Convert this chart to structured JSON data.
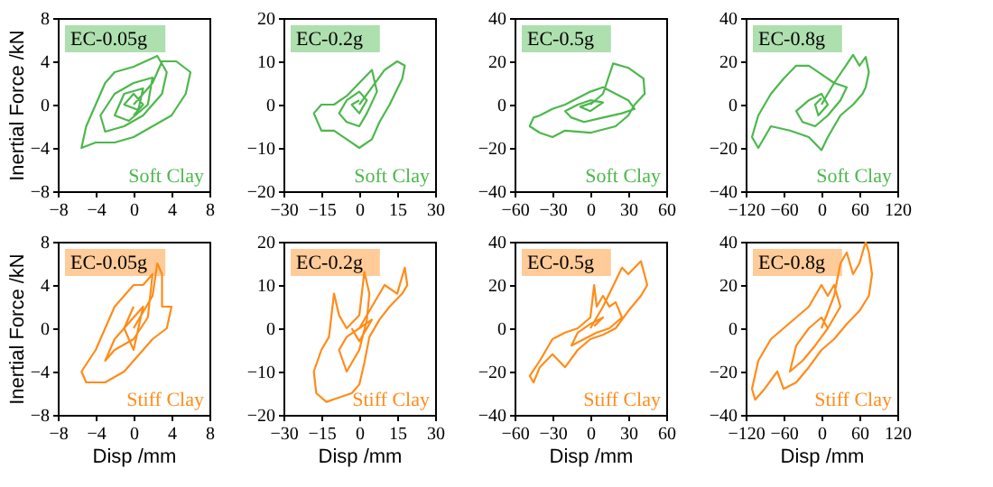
{
  "chart_data": [
    {
      "type": "line",
      "title": "EC-0.05g",
      "ylabel": "Inertial Force /kN",
      "annotations": [
        "Soft Clay"
      ],
      "xlim": [
        -8,
        8
      ],
      "ylim": [
        -8,
        8
      ],
      "xticks": [
        -8,
        -4,
        0,
        4,
        8
      ],
      "yticks": [
        -8,
        -4,
        0,
        4,
        8
      ],
      "grid": false,
      "series": [
        {
          "color": "#4cb84c",
          "x": [
            0,
            2,
            3,
            4.5,
            6,
            5.5,
            4,
            2,
            0,
            -2,
            -4,
            -5.5,
            -5,
            -4,
            -3,
            -2,
            0,
            2.5,
            3.5,
            3,
            1,
            -1,
            -3,
            -3.5,
            -2,
            0,
            2,
            1.5,
            -0.5,
            -2,
            -1,
            1,
            0.5,
            -1,
            0,
            1,
            0
          ],
          "values": [
            0,
            2,
            4,
            4,
            3,
            1,
            -1,
            -2,
            -3,
            -3.5,
            -3.5,
            -4,
            -2,
            0,
            2,
            3,
            3.5,
            4.5,
            3,
            1,
            -1,
            -2,
            -2.5,
            -1,
            1,
            2,
            2.5,
            0,
            -1.5,
            -1,
            1,
            1.5,
            -0.5,
            0,
            1,
            0,
            -1
          ]
        }
      ]
    },
    {
      "type": "line",
      "title": "EC-0.2g",
      "annotations": [
        "Soft Clay"
      ],
      "xlim": [
        -30,
        30
      ],
      "ylim": [
        -20,
        20
      ],
      "xticks": [
        -30,
        -15,
        0,
        15,
        30
      ],
      "yticks": [
        -20,
        -10,
        0,
        10,
        20
      ],
      "grid": false,
      "series": [
        {
          "color": "#4cb84c",
          "x": [
            0,
            5,
            10,
            15,
            18,
            17,
            12,
            8,
            5,
            0,
            -5,
            -10,
            -15,
            -18,
            -15,
            -10,
            -5,
            0,
            5,
            7,
            3,
            0,
            -5,
            -8,
            -5,
            0,
            3,
            0,
            -3,
            0
          ],
          "values": [
            0,
            4,
            8,
            10,
            9,
            6,
            0,
            -4,
            -8,
            -10,
            -8,
            -6,
            -6,
            -2,
            0,
            0,
            2,
            5,
            8,
            3,
            -2,
            -5,
            -4,
            -2,
            1,
            3,
            1,
            -2,
            0,
            1
          ]
        }
      ]
    },
    {
      "type": "line",
      "title": "EC-0.5g",
      "annotations": [
        "Soft Clay"
      ],
      "xlim": [
        -60,
        60
      ],
      "ylim": [
        -40,
        40
      ],
      "xticks": [
        -60,
        -30,
        0,
        30,
        60
      ],
      "yticks": [
        -40,
        -20,
        0,
        20,
        40
      ],
      "grid": false,
      "series": [
        {
          "color": "#4cb84c",
          "x": [
            0,
            10,
            18,
            30,
            42,
            43,
            35,
            30,
            20,
            0,
            -20,
            -30,
            -40,
            -48,
            -45,
            -40,
            -30,
            -20,
            -10,
            0,
            10,
            20,
            30,
            35,
            25,
            10,
            -5,
            -15,
            -20,
            -10,
            0,
            10,
            0,
            -8,
            2
          ],
          "values": [
            0,
            5,
            19,
            17,
            12,
            5,
            0,
            -5,
            -10,
            -13,
            -12,
            -15,
            -13,
            -10,
            -6,
            -5,
            -2,
            0,
            3,
            6,
            8,
            5,
            2,
            -2,
            -4,
            -6,
            -8,
            -6,
            -3,
            0,
            2,
            1,
            -3,
            -1,
            1
          ]
        }
      ]
    },
    {
      "type": "line",
      "title": "EC-0.8g",
      "annotations": [
        "Soft Clay"
      ],
      "xlim": [
        -120,
        120
      ],
      "ylim": [
        -40,
        40
      ],
      "xticks": [
        -120,
        -60,
        0,
        60,
        120
      ],
      "yticks": [
        -40,
        -20,
        0,
        20,
        40
      ],
      "grid": false,
      "series": [
        {
          "color": "#4cb84c",
          "x": [
            0,
            20,
            50,
            60,
            70,
            75,
            70,
            65,
            50,
            30,
            10,
            0,
            -20,
            -50,
            -80,
            -100,
            -110,
            -100,
            -80,
            -60,
            -40,
            -20,
            0,
            20,
            40,
            30,
            10,
            -10,
            -30,
            -40,
            -20,
            0,
            10,
            -5,
            -10,
            0
          ],
          "values": [
            0,
            10,
            23,
            18,
            22,
            15,
            8,
            5,
            0,
            -5,
            -15,
            -21,
            -15,
            -12,
            -10,
            -20,
            -15,
            -5,
            5,
            12,
            18,
            18,
            14,
            10,
            8,
            2,
            -5,
            -10,
            -8,
            -3,
            2,
            5,
            0,
            -5,
            0,
            3
          ]
        }
      ]
    },
    {
      "type": "line",
      "title": "EC-0.05g",
      "xlabel": "Disp /mm",
      "ylabel": "Inertial Force /kN",
      "annotations": [
        "Stiff Clay"
      ],
      "xlim": [
        -8,
        8
      ],
      "ylim": [
        -8,
        8
      ],
      "xticks": [
        -8,
        -4,
        0,
        4,
        8
      ],
      "yticks": [
        -8,
        -4,
        0,
        4,
        8
      ],
      "grid": false,
      "series": [
        {
          "color": "#ff8c1a",
          "x": [
            0,
            2,
            2.5,
            3,
            3,
            4,
            3.5,
            2,
            0,
            -1,
            -3,
            -4,
            -5,
            -5.5,
            -4,
            -3,
            -2,
            -1,
            0,
            1,
            2,
            1.5,
            0,
            -2,
            -3,
            -2,
            0,
            1,
            0,
            -1,
            0
          ],
          "values": [
            0,
            3,
            6,
            5,
            2,
            2,
            0,
            -1,
            -3,
            -4,
            -5,
            -5,
            -5,
            -4,
            -2,
            0,
            2,
            3,
            4,
            4,
            5,
            1,
            -1,
            -2,
            -3,
            -1,
            1,
            2,
            -2,
            0,
            2
          ]
        }
      ]
    },
    {
      "type": "line",
      "title": "EC-0.2g",
      "xlabel": "Disp /mm",
      "annotations": [
        "Stiff Clay"
      ],
      "xlim": [
        -30,
        30
      ],
      "ylim": [
        -20,
        20
      ],
      "xticks": [
        -30,
        -15,
        0,
        15,
        30
      ],
      "yticks": [
        -20,
        -10,
        0,
        10,
        20
      ],
      "grid": false,
      "series": [
        {
          "color": "#ff8c1a",
          "x": [
            0,
            5,
            10,
            15,
            18,
            19,
            17,
            12,
            8,
            4,
            2,
            0,
            -3,
            -8,
            -13,
            -17,
            -18,
            -15,
            -12,
            -10,
            -8,
            -5,
            0,
            2,
            4,
            3,
            0,
            -5,
            -8,
            -5,
            0,
            5,
            0,
            -3
          ],
          "values": [
            0,
            5,
            10,
            8,
            14,
            10,
            8,
            5,
            2,
            -2,
            -8,
            -13,
            -15,
            -16,
            -17,
            -15,
            -10,
            -5,
            -2,
            8,
            3,
            0,
            3,
            13,
            8,
            2,
            -5,
            -10,
            -5,
            -2,
            0,
            2,
            -3,
            0
          ]
        }
      ]
    },
    {
      "type": "line",
      "title": "EC-0.5g",
      "xlabel": "Disp /mm",
      "annotations": [
        "Stiff Clay"
      ],
      "xlim": [
        -60,
        60
      ],
      "ylim": [
        -40,
        40
      ],
      "xticks": [
        -60,
        -30,
        0,
        30,
        60
      ],
      "yticks": [
        -40,
        -20,
        0,
        20,
        40
      ],
      "grid": false,
      "series": [
        {
          "color": "#ff8c1a",
          "x": [
            0,
            10,
            20,
            25,
            30,
            40,
            45,
            40,
            30,
            20,
            10,
            0,
            -10,
            -20,
            -30,
            -40,
            -45,
            -48,
            -40,
            -30,
            -20,
            -10,
            0,
            3,
            5,
            10,
            15,
            20,
            25,
            15,
            5,
            -5,
            -15,
            -10,
            0,
            10,
            3
          ],
          "values": [
            0,
            10,
            22,
            28,
            25,
            31,
            20,
            15,
            8,
            0,
            -3,
            -5,
            -10,
            -18,
            -12,
            -18,
            -25,
            -22,
            -15,
            -5,
            -2,
            0,
            5,
            20,
            10,
            15,
            10,
            12,
            5,
            0,
            -2,
            -5,
            -8,
            -2,
            2,
            5,
            1
          ]
        }
      ]
    },
    {
      "type": "line",
      "title": "EC-0.8g",
      "xlabel": "Disp /mm",
      "annotations": [
        "Stiff Clay"
      ],
      "xlim": [
        -120,
        120
      ],
      "ylim": [
        -40,
        40
      ],
      "xticks": [
        -120,
        -60,
        0,
        60,
        120
      ],
      "yticks": [
        -40,
        -20,
        0,
        20,
        40
      ],
      "grid": false,
      "series": [
        {
          "color": "#ff8c1a",
          "x": [
            0,
            20,
            30,
            40,
            50,
            60,
            70,
            75,
            80,
            75,
            60,
            40,
            20,
            0,
            -20,
            -40,
            -60,
            -70,
            -90,
            -105,
            -110,
            -100,
            -80,
            -60,
            -40,
            -20,
            0,
            10,
            20,
            30,
            10,
            -10,
            -30,
            -50,
            -40,
            -20,
            0,
            10
          ],
          "values": [
            0,
            15,
            30,
            35,
            25,
            30,
            40,
            35,
            25,
            15,
            8,
            2,
            -5,
            -10,
            -18,
            -25,
            -28,
            -20,
            -28,
            -33,
            -28,
            -15,
            -5,
            0,
            5,
            10,
            20,
            15,
            20,
            10,
            0,
            -8,
            -15,
            -20,
            -8,
            0,
            5,
            0
          ]
        }
      ]
    }
  ]
}
